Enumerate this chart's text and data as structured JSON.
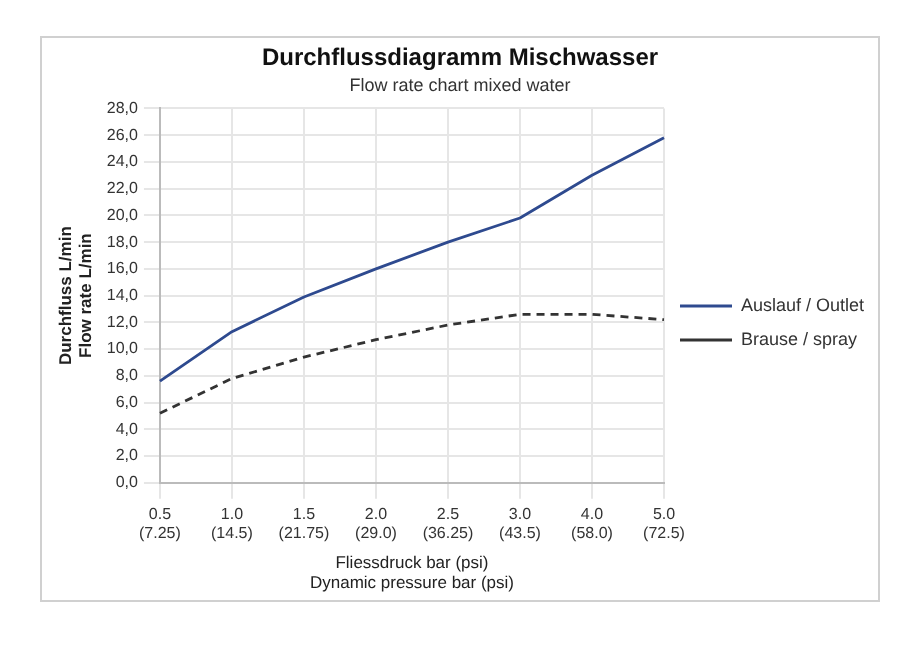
{
  "chart_data": {
    "type": "line",
    "title": "Durchflussdiagramm Mischwasser",
    "subtitle": "Flow rate chart mixed water",
    "xlabel": "Fliessdruck bar (psi)\nDynamic pressure bar (psi)",
    "ylabel": "Durchfluss L/min\nFlow rate L/min",
    "categories": [
      "0.5\n(7.25)",
      "1.0\n(14.5)",
      "1.5\n(21.75)",
      "2.0\n(29.0)",
      "2.5\n(36.25)",
      "3.0\n(43.5)",
      "4.0\n(58.0)",
      "5.0\n(72.5)"
    ],
    "series": [
      {
        "name": "Auslauf / Outlet",
        "color": "#2e4a8f",
        "line_style": "solid",
        "values": [
          7.6,
          11.3,
          13.9,
          16.0,
          18.0,
          19.8,
          23.0,
          25.8
        ]
      },
      {
        "name": "Brause / spray",
        "color": "#333333",
        "line_style": "dashed",
        "values": [
          5.2,
          7.8,
          9.4,
          10.7,
          11.8,
          12.6,
          12.6,
          12.2
        ]
      }
    ],
    "ylim": [
      0,
      28
    ],
    "yticks": [
      {
        "value": 0,
        "label": "0,0"
      },
      {
        "value": 2,
        "label": "2,0"
      },
      {
        "value": 4,
        "label": "4,0"
      },
      {
        "value": 6,
        "label": "6,0"
      },
      {
        "value": 8,
        "label": "8,0"
      },
      {
        "value": 10,
        "label": "10,0"
      },
      {
        "value": 12,
        "label": "12,0"
      },
      {
        "value": 14,
        "label": "14,0"
      },
      {
        "value": 16,
        "label": "16,0"
      },
      {
        "value": 18,
        "label": "18,0"
      },
      {
        "value": 20,
        "label": "20,0"
      },
      {
        "value": 22,
        "label": "22,0"
      },
      {
        "value": 24,
        "label": "24,0"
      },
      {
        "value": 26,
        "label": "26,0"
      },
      {
        "value": 28,
        "label": "28,0"
      }
    ],
    "grid": true,
    "legend": "right",
    "marker": "none"
  }
}
